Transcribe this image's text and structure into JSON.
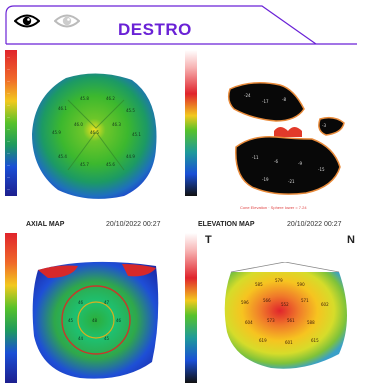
{
  "header": {
    "title": "DESTRO",
    "eye_active": "eye-icon",
    "eye_inactive": "eye-icon",
    "accent": "#6a22d6"
  },
  "maps": [
    {
      "label": "AXIAL MAP",
      "date": "20/10/2022 00:27"
    },
    {
      "label": "ELEVATION MAP",
      "date": "20/10/2022 00:27"
    }
  ],
  "bottom": {
    "left_letter": "T",
    "right_letter": "N"
  },
  "elevation_caption": "Cone Elevation · Sphere lower = 7.24"
}
